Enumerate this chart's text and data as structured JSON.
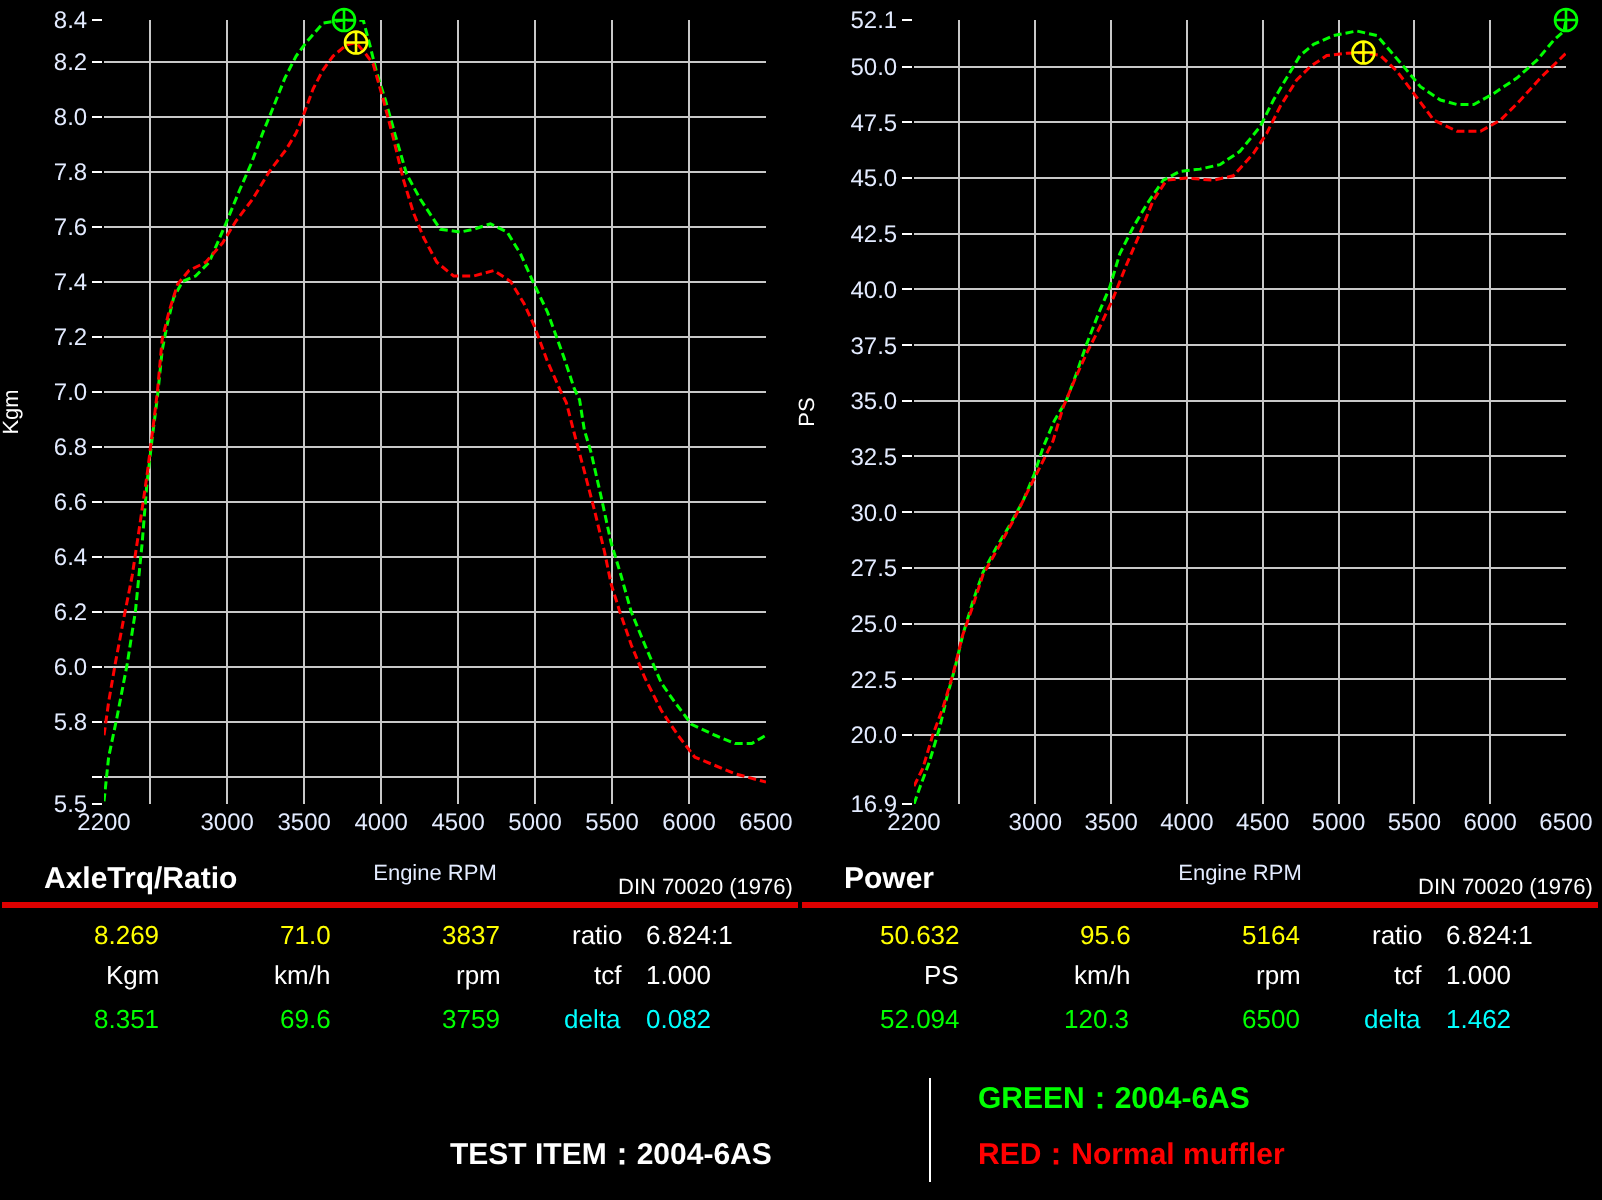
{
  "chart_data": [
    {
      "type": "line",
      "title": "AxleTrq/Ratio",
      "xlabel": "Engine RPM",
      "ylabel": "Kgm",
      "xlim": [
        2200,
        6500
      ],
      "xticks": [
        2200,
        {
          "value": 2500,
          "label": null
        },
        3000,
        3500,
        4000,
        4500,
        5000,
        5500,
        6000,
        6500
      ],
      "ylim": [
        5.5,
        8.351
      ],
      "yticks": [
        5.5,
        {
          "value": 5.6,
          "label": null
        },
        5.8,
        {
          "value": 6,
          "label": "6.0"
        },
        6.2,
        6.4,
        6.6,
        6.8,
        {
          "value": 7,
          "label": "7.0"
        },
        7.2,
        7.4,
        7.6,
        7.8,
        {
          "value": 8,
          "label": "8.0"
        },
        8.2,
        {
          "value": 8.351,
          "label": "8.4"
        }
      ],
      "grid": true,
      "legend": "bottom",
      "line_style": "dashed",
      "series": [
        {
          "name": "GREEN：2004-6AS",
          "color": "#00ff00",
          "x": [
            2200,
            2230,
            2286,
            2351,
            2404,
            2448,
            2478,
            2513,
            2547,
            2578,
            2609,
            2652,
            2709,
            2795,
            2883,
            2991,
            3079,
            3157,
            3231,
            3297,
            3375,
            3448,
            3514,
            3623,
            3759,
            3884,
            3927,
            3971,
            4028,
            4093,
            4166,
            4254,
            4384,
            4515,
            4602,
            4710,
            4819,
            4906,
            4994,
            5080,
            5190,
            5255,
            5289,
            5320,
            5363,
            5428,
            5494,
            5559,
            5624,
            5712,
            5820,
            5908,
            6016,
            6169,
            6299,
            6408,
            6500
          ],
          "values": [
            5.51,
            5.67,
            5.82,
            6.01,
            6.2,
            6.45,
            6.66,
            6.83,
            6.98,
            7.15,
            7.24,
            7.34,
            7.4,
            7.42,
            7.47,
            7.61,
            7.73,
            7.83,
            7.94,
            8.03,
            8.14,
            8.22,
            8.27,
            8.34,
            8.351,
            8.35,
            8.26,
            8.16,
            8.06,
            7.93,
            7.79,
            7.7,
            7.59,
            7.58,
            7.59,
            7.61,
            7.58,
            7.5,
            7.39,
            7.29,
            7.12,
            7.01,
            6.97,
            6.86,
            6.78,
            6.62,
            6.45,
            6.33,
            6.2,
            6.08,
            5.94,
            5.87,
            5.79,
            5.75,
            5.72,
            5.72,
            5.75
          ]
        },
        {
          "name": "RED：Normal muffler",
          "color": "#ff0000",
          "x": [
            2200,
            2230,
            2273,
            2330,
            2383,
            2426,
            2478,
            2521,
            2547,
            2578,
            2622,
            2678,
            2752,
            2861,
            2970,
            3057,
            3166,
            3274,
            3383,
            3448,
            3492,
            3558,
            3623,
            3688,
            3775,
            3837,
            3897,
            3949,
            4015,
            4080,
            4145,
            4210,
            4276,
            4362,
            4471,
            4602,
            4733,
            4841,
            4928,
            4994,
            5080,
            5167,
            5203,
            5263,
            5320,
            5385,
            5450,
            5494,
            5550,
            5624,
            5712,
            5820,
            5928,
            6038,
            6169,
            6299,
            6430,
            6500
          ],
          "values": [
            5.75,
            5.87,
            6.01,
            6.18,
            6.33,
            6.49,
            6.69,
            6.88,
            7.0,
            7.19,
            7.29,
            7.39,
            7.44,
            7.47,
            7.54,
            7.62,
            7.7,
            7.8,
            7.88,
            7.94,
            8.0,
            8.1,
            8.17,
            8.22,
            8.26,
            8.269,
            8.23,
            8.19,
            8.06,
            7.92,
            7.77,
            7.65,
            7.56,
            7.47,
            7.42,
            7.42,
            7.44,
            7.4,
            7.32,
            7.24,
            7.11,
            7.0,
            6.96,
            6.83,
            6.71,
            6.57,
            6.42,
            6.3,
            6.2,
            6.08,
            5.96,
            5.84,
            5.75,
            5.67,
            5.64,
            5.61,
            5.59,
            5.58
          ]
        },
        {
          "type": "scatter",
          "color": "#ffff00",
          "marker": "cross",
          "x": [
            3837
          ],
          "values": [
            8.269
          ]
        },
        {
          "type": "scatter",
          "color": "#00ff00",
          "marker": "cross",
          "x": [
            3759
          ],
          "values": [
            8.351
          ]
        }
      ],
      "annotations": [
        "DIN 70020 (1976)",
        "8.269",
        "71.0",
        "3837",
        "ratio",
        "6.824:1",
        "Kgm",
        "km/h",
        "rpm",
        "tcf",
        "1.000",
        "8.351",
        "69.6",
        "3759",
        "delta",
        "0.082"
      ]
    },
    {
      "type": "line",
      "title": "Power",
      "xlabel": "Engine RPM",
      "ylabel": "PS",
      "xlim": [
        2200,
        6500
      ],
      "xticks": [
        2200,
        {
          "value": 2500,
          "label": null
        },
        3000,
        3500,
        4000,
        4500,
        5000,
        5500,
        6000,
        6500
      ],
      "ylim": [
        16.9,
        52.094
      ],
      "yticks": [
        16.9,
        {
          "value": 20,
          "label": "20.0"
        },
        22.5,
        {
          "value": 25,
          "label": "25.0"
        },
        27.5,
        {
          "value": 30,
          "label": "30.0"
        },
        32.5,
        {
          "value": 35,
          "label": "35.0"
        },
        37.5,
        {
          "value": 40,
          "label": "40.0"
        },
        42.5,
        {
          "value": 45,
          "label": "45.0"
        },
        47.5,
        {
          "value": 50,
          "label": "50.0"
        },
        {
          "value": 52.094,
          "label": "52.1"
        }
      ],
      "grid": true,
      "line_style": "dashed",
      "series": [
        {
          "color": "#00ff00",
          "x": [
            2200,
            2236,
            2302,
            2368,
            2421,
            2470,
            2522,
            2589,
            2655,
            2742,
            2830,
            2919,
            2993,
            3051,
            3125,
            3204,
            3270,
            3336,
            3416,
            3491,
            3557,
            3646,
            3733,
            3844,
            3954,
            4086,
            4218,
            4350,
            4482,
            4571,
            4658,
            4746,
            4835,
            4967,
            5120,
            5253,
            5341,
            5430,
            5540,
            5672,
            5781,
            5892,
            6024,
            6178,
            6310,
            6421,
            6487,
            6500
          ],
          "values": [
            16.9,
            17.6,
            18.8,
            20.3,
            21.8,
            23.0,
            24.5,
            26.0,
            27.3,
            28.4,
            29.4,
            30.5,
            31.7,
            32.9,
            34.1,
            35.0,
            36.2,
            37.5,
            38.9,
            40.1,
            41.6,
            42.8,
            43.8,
            44.9,
            45.3,
            45.4,
            45.6,
            46.2,
            47.3,
            48.5,
            49.5,
            50.5,
            51.0,
            51.4,
            51.6,
            51.4,
            50.7,
            50.0,
            49.1,
            48.5,
            48.3,
            48.3,
            48.8,
            49.5,
            50.3,
            51.2,
            51.6,
            52.094
          ]
        },
        {
          "color": "#ff0000",
          "x": [
            2200,
            2258,
            2324,
            2390,
            2456,
            2522,
            2589,
            2655,
            2764,
            2853,
            2940,
            3029,
            3117,
            3183,
            3257,
            3336,
            3425,
            3513,
            3601,
            3689,
            3778,
            3865,
            3997,
            4174,
            4306,
            4438,
            4526,
            4614,
            4724,
            4813,
            4922,
            5054,
            5164,
            5275,
            5385,
            5496,
            5628,
            5781,
            5936,
            6068,
            6200,
            6332,
            6500
          ],
          "values": [
            17.7,
            18.5,
            20.0,
            21.2,
            22.7,
            24.5,
            25.8,
            27.2,
            28.5,
            29.6,
            30.8,
            32.0,
            33.2,
            34.7,
            35.9,
            37.1,
            38.3,
            39.6,
            41.1,
            42.5,
            44.0,
            44.9,
            45.0,
            44.9,
            45.1,
            46.1,
            47.0,
            48.2,
            49.4,
            50.0,
            50.5,
            50.6,
            50.632,
            50.5,
            49.8,
            48.8,
            47.6,
            47.1,
            47.1,
            47.6,
            48.5,
            49.5,
            50.6
          ]
        },
        {
          "type": "scatter",
          "color": "#ffff00",
          "marker": "cross",
          "x": [
            5164
          ],
          "values": [
            50.632
          ]
        },
        {
          "type": "scatter",
          "color": "#00ff00",
          "marker": "cross",
          "x": [
            6500
          ],
          "values": [
            52.094
          ]
        }
      ],
      "annotations": [
        "DIN 70020 (1976)",
        "50.632",
        "95.6",
        "5164",
        "ratio",
        "6.824:1",
        "PS",
        "km/h",
        "rpm",
        "tcf",
        "1.000",
        "52.094",
        "120.3",
        "6500",
        "delta",
        "1.462"
      ]
    },
    {
      "type": "other",
      "annotations": [
        "TEST ITEM：2004-6AS"
      ]
    }
  ]
}
